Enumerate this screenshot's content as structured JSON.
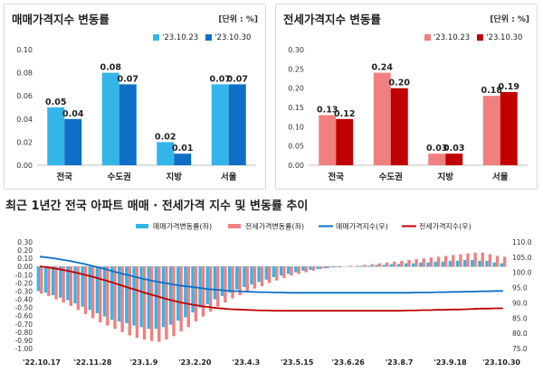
{
  "panels": [
    {
      "title": "매매가격지수 변동률",
      "unit": "[단위 : %]",
      "chart_data": {
        "type": "bar",
        "categories": [
          "전국",
          "수도권",
          "지방",
          "서울"
        ],
        "series": [
          {
            "name": "'23.10.23",
            "values": [
              0.05,
              0.08,
              0.02,
              0.07
            ]
          },
          {
            "name": "'23.10.30",
            "values": [
              0.04,
              0.07,
              0.01,
              0.07
            ]
          }
        ],
        "ylim": [
          0,
          0.1
        ],
        "yticks": [
          0.0,
          0.02,
          0.04,
          0.06,
          0.08,
          0.1
        ],
        "data_labels": [
          [
            "0.05",
            "0.08",
            "0.02",
            "0.07"
          ],
          [
            "0.04",
            "0.07",
            "0.01",
            "0.07"
          ]
        ],
        "colors": [
          "#33b5e9",
          "#0f6fc6"
        ]
      }
    },
    {
      "title": "전세가격지수 변동률",
      "unit": "[단위 : %]",
      "chart_data": {
        "type": "bar",
        "categories": [
          "전국",
          "수도권",
          "지방",
          "서울"
        ],
        "series": [
          {
            "name": "'23.10.23",
            "values": [
              0.13,
              0.24,
              0.03,
              0.18
            ]
          },
          {
            "name": "'23.10.30",
            "values": [
              0.12,
              0.2,
              0.03,
              0.19
            ]
          }
        ],
        "ylim": [
          0,
          0.3
        ],
        "yticks": [
          0.0,
          0.05,
          0.1,
          0.15,
          0.2,
          0.25,
          0.3
        ],
        "data_labels": [
          [
            "0.13",
            "0.24",
            "0.03",
            "0.18"
          ],
          [
            "0.12",
            "0.20",
            "0.03",
            "0.19"
          ]
        ],
        "colors": [
          "#f08080",
          "#c00000"
        ]
      }
    }
  ],
  "bottom": {
    "title": "최근 1년간 전국 아파트 매매 · 전세가격 지수 및 변동률 추이",
    "chart_data": {
      "type": "bar",
      "legend": [
        "매매가격변동률(좌)",
        "전세가격변동률(좌)",
        "매매가격지수(우)",
        "전세가격지수(우)"
      ],
      "colors": [
        "#33b5e9",
        "#f08080",
        "#0f6fc6",
        "#c00000"
      ],
      "xticks": [
        "'22.10.17",
        "'22.11.28",
        "'23.1.9",
        "'23.2.20",
        "'23.4.3",
        "'23.5.15",
        "'23.6.26",
        "'23.8.7",
        "'23.9.18",
        "'23.10.30"
      ],
      "ylim_left": [
        -1.0,
        0.3
      ],
      "yticks_left": [
        "0.30",
        "0.20",
        "0.10",
        "0.00",
        "-0.10",
        "-0.20",
        "-0.30",
        "-0.40",
        "-0.50",
        "-0.60",
        "-0.70",
        "-0.80",
        "-0.90",
        "-1.00"
      ],
      "ylim_right": [
        75.0,
        110.0
      ],
      "yticks_right": [
        "110.0",
        "105.0",
        "100.0",
        "95.0",
        "90.0",
        "85.0",
        "80.0",
        "75.0"
      ],
      "sale_rate": [
        -0.3,
        -0.32,
        -0.35,
        -0.38,
        -0.41,
        -0.45,
        -0.49,
        -0.53,
        -0.57,
        -0.61,
        -0.65,
        -0.67,
        -0.69,
        -0.72,
        -0.74,
        -0.76,
        -0.76,
        -0.74,
        -0.71,
        -0.66,
        -0.62,
        -0.56,
        -0.5,
        -0.46,
        -0.4,
        -0.36,
        -0.32,
        -0.28,
        -0.25,
        -0.22,
        -0.19,
        -0.16,
        -0.13,
        -0.11,
        -0.09,
        -0.07,
        -0.05,
        -0.04,
        -0.03,
        -0.02,
        -0.01,
        -0.01,
        0.0,
        0.0,
        0.01,
        0.01,
        0.02,
        0.02,
        0.03,
        0.03,
        0.04,
        0.04,
        0.05,
        0.05,
        0.06,
        0.06,
        0.07,
        0.07,
        0.08,
        0.08,
        0.07,
        0.07,
        0.05,
        0.04
      ],
      "jeonse_rate": [
        -0.33,
        -0.36,
        -0.4,
        -0.44,
        -0.48,
        -0.53,
        -0.58,
        -0.63,
        -0.68,
        -0.72,
        -0.76,
        -0.8,
        -0.84,
        -0.87,
        -0.89,
        -0.91,
        -0.92,
        -0.89,
        -0.85,
        -0.79,
        -0.74,
        -0.67,
        -0.61,
        -0.55,
        -0.49,
        -0.44,
        -0.39,
        -0.35,
        -0.31,
        -0.27,
        -0.24,
        -0.2,
        -0.17,
        -0.14,
        -0.11,
        -0.09,
        -0.07,
        -0.05,
        -0.03,
        -0.02,
        -0.01,
        0.0,
        0.01,
        0.01,
        0.02,
        0.03,
        0.04,
        0.05,
        0.06,
        0.07,
        0.08,
        0.09,
        0.1,
        0.11,
        0.12,
        0.13,
        0.14,
        0.15,
        0.16,
        0.17,
        0.17,
        0.15,
        0.13,
        0.12
      ],
      "sale_index": [
        105.2,
        104.9,
        104.6,
        104.2,
        103.8,
        103.3,
        102.8,
        102.2,
        101.6,
        101.0,
        100.3,
        99.7,
        99.1,
        98.5,
        97.9,
        97.4,
        96.9,
        96.5,
        96.1,
        95.7,
        95.4,
        95.1,
        94.8,
        94.5,
        94.3,
        94.1,
        93.9,
        93.8,
        93.7,
        93.6,
        93.5,
        93.5,
        93.4,
        93.4,
        93.3,
        93.3,
        93.3,
        93.3,
        93.3,
        93.3,
        93.3,
        93.3,
        93.3,
        93.3,
        93.3,
        93.3,
        93.3,
        93.3,
        93.3,
        93.3,
        93.3,
        93.4,
        93.4,
        93.4,
        93.5,
        93.5,
        93.6,
        93.6,
        93.7,
        93.7,
        93.8,
        93.8,
        93.9,
        93.9
      ],
      "jeonse_index": [
        102.0,
        101.7,
        101.3,
        100.9,
        100.4,
        99.9,
        99.3,
        98.7,
        98.0,
        97.3,
        96.6,
        95.8,
        95.0,
        94.3,
        93.5,
        92.8,
        92.1,
        91.4,
        90.8,
        90.2,
        89.7,
        89.3,
        88.9,
        88.6,
        88.3,
        88.1,
        87.9,
        87.8,
        87.7,
        87.6,
        87.5,
        87.5,
        87.4,
        87.4,
        87.4,
        87.4,
        87.4,
        87.4,
        87.4,
        87.4,
        87.4,
        87.4,
        87.4,
        87.4,
        87.4,
        87.4,
        87.4,
        87.4,
        87.4,
        87.4,
        87.5,
        87.5,
        87.6,
        87.6,
        87.7,
        87.7,
        87.8,
        87.8,
        87.9,
        88.0,
        88.1,
        88.1,
        88.2,
        88.2
      ]
    }
  }
}
